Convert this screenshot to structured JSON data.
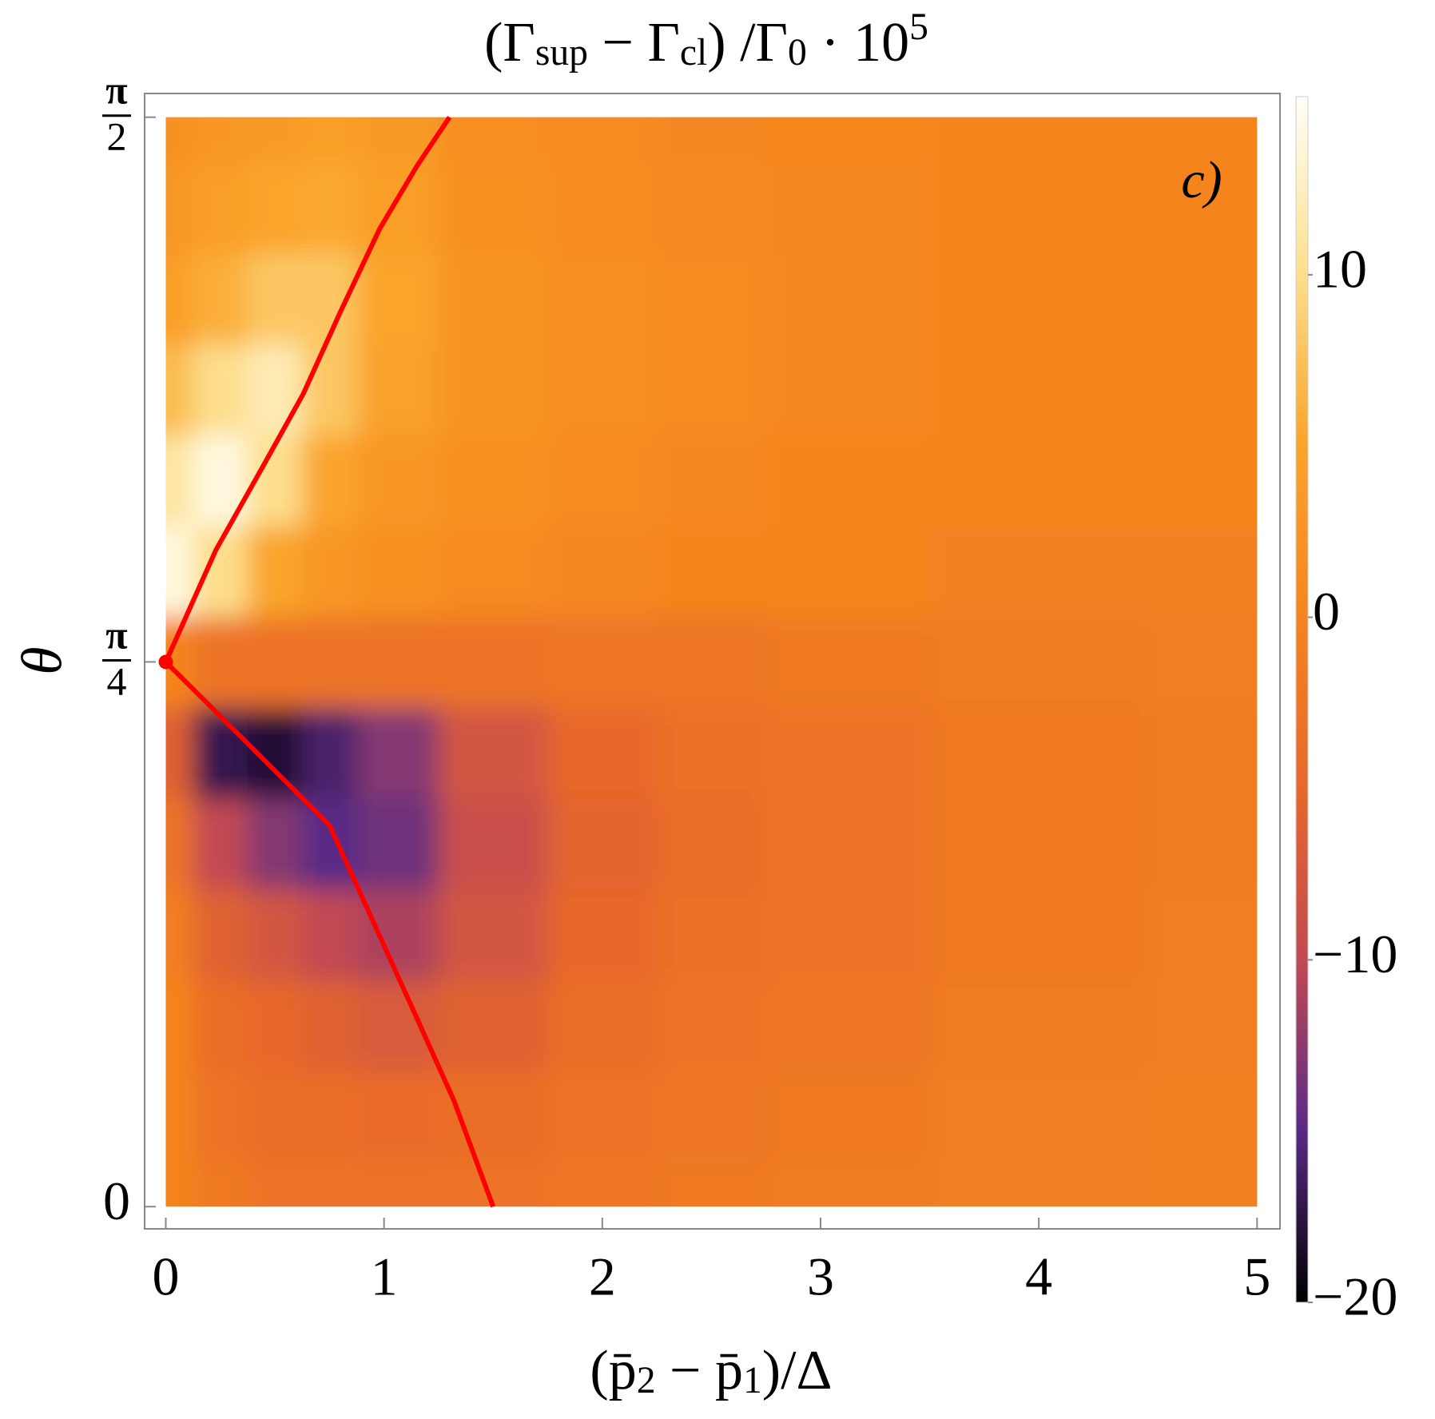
{
  "chart_data": {
    "type": "heatmap",
    "title": [
      {
        "text": "(Γ"
      },
      {
        "text": "sup",
        "shift": "sub"
      },
      {
        "text": " − Γ"
      },
      {
        "text": "cl",
        "shift": "sub"
      },
      {
        "text": ") /Γ"
      },
      {
        "text": "0",
        "shift": "sub"
      },
      {
        "text": " · 10"
      },
      {
        "text": "5",
        "shift": "super"
      }
    ],
    "xlabel": [
      {
        "text": "(p̄"
      },
      {
        "text": "2",
        "shift": "sub"
      },
      {
        "text": " − p̄"
      },
      {
        "text": "1",
        "shift": "sub"
      },
      {
        "text": ")/Δ"
      }
    ],
    "ylabel": "θ",
    "annotation": "c)",
    "xlim": [
      -0.097,
      5.105
    ],
    "ylim": [
      -0.032,
      1.605
    ],
    "xticks": [
      0,
      1,
      2,
      3,
      4,
      5
    ],
    "yticks": [
      0,
      {
        "value": 0.785398,
        "label": "π/4"
      },
      {
        "value": 1.570796,
        "label": "π/2"
      }
    ],
    "x": [
      0,
      0.25,
      0.5,
      0.75,
      1,
      1.5,
      2,
      2.5,
      3,
      4,
      5
    ],
    "y": [
      0,
      0.1309,
      0.2618,
      0.3927,
      0.5236,
      0.6545,
      0.7854,
      0.9163,
      1.0472,
      1.1781,
      1.309,
      1.4399,
      1.5708
    ],
    "z": [
      [
        0,
        -2,
        -3,
        -3,
        -3,
        -3,
        -2.5,
        -2,
        -1.5,
        -1,
        -0.5
      ],
      [
        0,
        -3,
        -4,
        -4,
        -4.5,
        -4,
        -3,
        -2.5,
        -2,
        -1,
        -0.5
      ],
      [
        0,
        -4,
        -5,
        -6,
        -7,
        -6,
        -4,
        -3,
        -2.5,
        -1.5,
        -1
      ],
      [
        -1,
        -6,
        -8,
        -10,
        -11,
        -8,
        -5,
        -3.5,
        -3,
        -2,
        -1
      ],
      [
        -3,
        -10,
        -13,
        -15,
        -14,
        -9,
        -5.5,
        -4,
        -3,
        -2,
        -1.5
      ],
      [
        -6,
        -17,
        -18,
        -16,
        -13,
        -8,
        -5,
        -3.5,
        -3,
        -2,
        -1.5
      ],
      [
        0,
        -3,
        -3,
        -3,
        -3,
        -3,
        -2.5,
        -2.5,
        -2,
        -1.5,
        -1
      ],
      [
        14,
        10,
        5,
        3,
        2,
        1,
        0.5,
        0,
        0,
        -0.5,
        -0.5
      ],
      [
        11,
        14,
        10,
        5,
        3,
        2,
        1,
        0.5,
        0,
        0,
        0
      ],
      [
        7,
        10,
        12,
        8,
        4.5,
        2.5,
        1.5,
        1,
        0.5,
        0,
        0
      ],
      [
        4,
        6,
        8,
        8,
        5,
        2.5,
        1.5,
        1,
        0.5,
        0,
        0
      ],
      [
        3,
        4,
        5,
        5.5,
        4,
        2,
        1.2,
        0.8,
        0.4,
        0,
        0
      ],
      [
        2,
        3,
        3.5,
        4,
        3.5,
        1.5,
        1,
        0.5,
        0.3,
        0,
        0
      ]
    ],
    "zlim": [
      -20,
      15.2
    ],
    "zticks": [
      {
        "value": -20,
        "label": "−20"
      },
      {
        "value": -10,
        "label": "−10"
      },
      0,
      10
    ],
    "colorscale": [
      "#000000",
      "#5a2a86",
      "#c24a52",
      "#e8682a",
      "#f5851f",
      "#faa52a",
      "#fde08f",
      "#fffff8"
    ],
    "curves": [
      {
        "color": "#ff0000",
        "x": [
          0,
          0.23,
          0.45,
          0.63,
          0.8,
          0.98,
          1.15,
          1.3
        ],
        "y": [
          0.785398,
          0.947,
          1.07,
          1.172,
          1.29,
          1.41,
          1.5,
          1.5708
        ]
      },
      {
        "color": "#ff0000",
        "x": [
          0,
          0.33,
          0.75,
          0.94,
          1.13,
          1.32,
          1.5
        ],
        "y": [
          0.785398,
          0.682,
          0.55,
          0.418,
          0.286,
          0.153,
          0
        ]
      }
    ],
    "points": [
      {
        "x": 0,
        "y": 0.785398,
        "color": "#ff0000"
      }
    ]
  }
}
